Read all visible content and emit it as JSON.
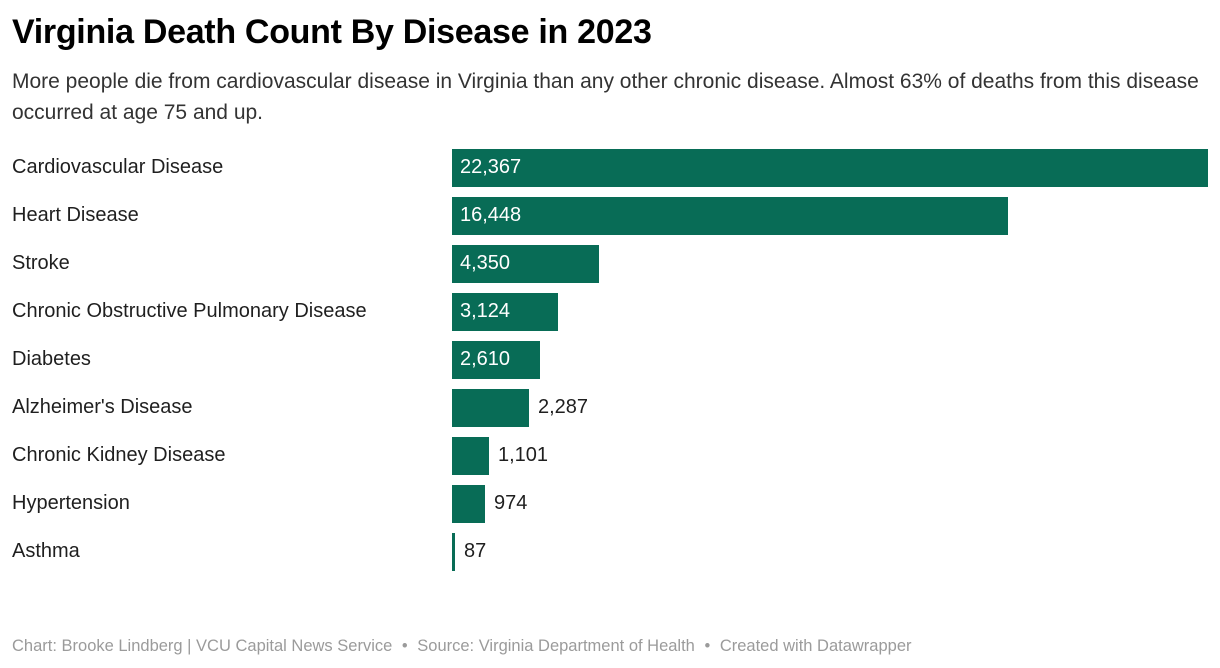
{
  "page": {
    "title": "Virginia Death Count By Disease in 2023",
    "description": "More people die from cardiovascular disease in Virginia than any other chronic disease. Almost 63% of deaths from this disease occurred at age 75 and up."
  },
  "footer": {
    "chart_credit": "Chart: Brooke Lindberg | VCU Capital News Service",
    "source": "Source: Virginia Department of Health",
    "created": "Created with Datawrapper",
    "separator": "•"
  },
  "colors": {
    "bar": "#086c56",
    "value_inside": "#ffffff",
    "value_outside": "#1f1f1f",
    "label": "#1f1f1f",
    "footer_text": "#9b9b9b"
  },
  "chart_data": {
    "type": "bar",
    "orientation": "horizontal",
    "title": "Virginia Death Count By Disease in 2023",
    "subtitle": "More people die from cardiovascular disease in Virginia than any other chronic disease. Almost 63% of deaths from this disease occurred at age 75 and up.",
    "categories": [
      "Cardiovascular Disease",
      "Heart Disease",
      "Stroke",
      "Chronic Obstructive Pulmonary Disease",
      "Diabetes",
      "Alzheimer's Disease",
      "Chronic Kidney Disease",
      "Hypertension",
      "Asthma"
    ],
    "values": [
      22367,
      16448,
      4350,
      3124,
      2610,
      2287,
      1101,
      974,
      87
    ],
    "value_labels": [
      "22,367",
      "16,448",
      "4,350",
      "3,124",
      "2,610",
      "2,287",
      "1,101",
      "974",
      "87"
    ],
    "xlim": [
      0,
      22367
    ],
    "grid": false,
    "legend": false
  }
}
